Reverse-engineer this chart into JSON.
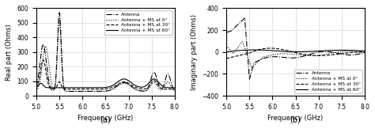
{
  "title_a": "(a)",
  "title_b": "(b)",
  "xlabel": "Frequency (GHz)",
  "ylabel_a": "Real part (Ohms)",
  "ylabel_b": "Imaginary part (Ohms)",
  "ylim_a": [
    0,
    600
  ],
  "ylim_b": [
    -400,
    400
  ],
  "xlim": [
    5,
    8
  ],
  "yticks_a": [
    0,
    100,
    200,
    300,
    400,
    500,
    600
  ],
  "yticks_b": [
    -400,
    -200,
    0,
    200,
    400
  ],
  "xticks": [
    5,
    5.5,
    6,
    6.5,
    7,
    7.5,
    8
  ],
  "legend_labels": [
    "Antenna",
    "Antenna + MS at 0°",
    "Antenna + MS at 30°",
    "Antenna + MS at 60°"
  ],
  "line_styles": [
    "-.",
    ":",
    "--",
    "-"
  ],
  "background_color": "#ffffff",
  "grid_color": "#cccccc"
}
